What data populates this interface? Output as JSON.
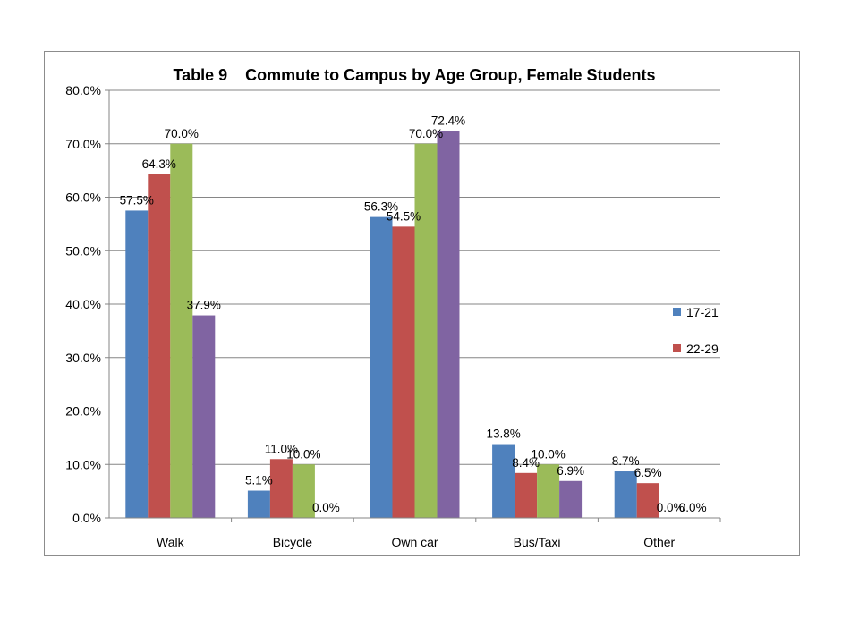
{
  "chart_data": {
    "type": "bar",
    "title": "Table 9    Commute to Campus by Age Group, Female Students",
    "xlabel": "",
    "ylabel": "",
    "ylim": [
      0,
      80
    ],
    "y_ticks": [
      "0.0%",
      "10.0%",
      "20.0%",
      "30.0%",
      "40.0%",
      "50.0%",
      "60.0%",
      "70.0%",
      "80.0%"
    ],
    "grid": true,
    "legend_position": "right",
    "categories": [
      "Walk",
      "Bicycle",
      "Own car",
      "Bus/Taxi",
      "Other"
    ],
    "series": [
      {
        "name": "17-21",
        "color": "#4f81bd",
        "values": [
          57.5,
          5.1,
          56.3,
          13.8,
          8.7
        ],
        "labels": [
          "57.5%",
          "5.1%",
          "56.3%",
          "13.8%",
          "8.7%"
        ]
      },
      {
        "name": "22-29",
        "color": "#c0504d",
        "values": [
          64.3,
          11.0,
          54.5,
          8.4,
          6.5
        ],
        "labels": [
          "64.3%",
          "11.0%",
          "54.5%",
          "8.4%",
          "6.5%"
        ]
      },
      {
        "color": "#9bbb59",
        "values": [
          70.0,
          10.0,
          70.0,
          10.0,
          0.0
        ],
        "labels": [
          "70.0%",
          "10.0%",
          "70.0%",
          "10.0%",
          "0.0%"
        ]
      },
      {
        "color": "#8064a2",
        "values": [
          37.9,
          0.0,
          72.4,
          6.9,
          0.0
        ],
        "labels": [
          "37.9%",
          "0.0%",
          "72.4%",
          "6.9%",
          "0.0%"
        ]
      }
    ]
  }
}
